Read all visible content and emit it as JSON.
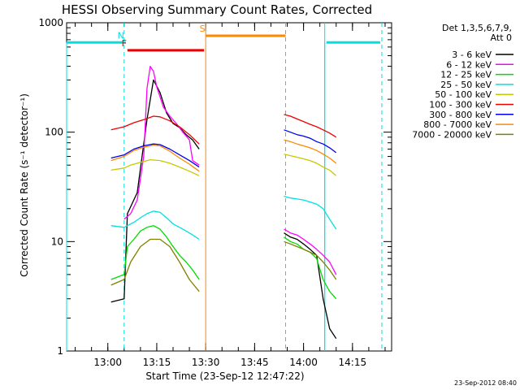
{
  "chart_data": {
    "type": "line",
    "title": "HESSI Observing Summary Count Rates, Corrected",
    "xlabel": "Start Time (23-Sep-12 12:47:22)",
    "ylabel": "Corrected Count Rate (s⁻¹ detector⁻¹)",
    "y_scale": "log",
    "ylim": [
      1,
      1000
    ],
    "xlim": [
      "12:47:22",
      "14:27:00"
    ],
    "x_ticks": [
      "13:00",
      "13:15",
      "13:30",
      "13:45",
      "14:00",
      "14:15"
    ],
    "y_ticks": [
      "1",
      "10",
      "100",
      "1000"
    ],
    "timestamp": "23-Sep-2012 08:40",
    "legend": {
      "placement": "right",
      "header_line1": "Det 1,3,5,6,7,9,",
      "header_line2": "Att 0",
      "entries": [
        {
          "label": "3 - 6 keV",
          "color": "#000000"
        },
        {
          "label": "6 - 12 keV",
          "color": "#ff00ff"
        },
        {
          "label": "12 - 25 keV",
          "color": "#00dd00"
        },
        {
          "label": "25 - 50 keV",
          "color": "#00e0e0"
        },
        {
          "label": "50 - 100 keV",
          "color": "#c8c800"
        },
        {
          "label": "100 - 300 keV",
          "color": "#ee0000"
        },
        {
          "label": "300 - 800 keV",
          "color": "#0000ee"
        },
        {
          "label": "800 - 7000 keV",
          "color": "#ff8800"
        },
        {
          "label": "7000 - 20000 keV",
          "color": "#808000"
        }
      ]
    },
    "flag_bars": [
      {
        "label": "",
        "color": "#00e0e0",
        "start": "12:47:22",
        "end": "13:05:00",
        "y": 660
      },
      {
        "label": "N",
        "color": "#00e0e0",
        "start": "13:05:00",
        "end": "13:05:30",
        "y": 660
      },
      {
        "label": "F",
        "color": "#ee0000",
        "start": "13:06:00",
        "end": "13:29:30",
        "y": 560
      },
      {
        "label": "S",
        "color": "#ff8800",
        "start": "13:30:00",
        "end": "13:54:30",
        "y": 760
      },
      {
        "label": "",
        "color": "#00e0e0",
        "start": "14:07:00",
        "end": "14:23:30",
        "y": 660
      }
    ],
    "markers": [
      {
        "time": "13:05:00",
        "color": "#00e0e0",
        "style": "dashed"
      },
      {
        "time": "13:30:00",
        "color": "#ff8800",
        "style": "solid"
      },
      {
        "time": "13:54:30",
        "color": "#ff8800",
        "style": "dashed"
      },
      {
        "time": "14:06:30",
        "color": "#00e0e0",
        "style": "solid"
      },
      {
        "time": "14:24:00",
        "color": "#00e0e0",
        "style": "dashed"
      }
    ],
    "segments": [
      {
        "start": "12:47:22",
        "end": "13:05:00"
      },
      {
        "start": "14:06:30",
        "end": "14:24:00"
      }
    ],
    "series": [
      {
        "name": "3 - 6 keV",
        "color": "#000000",
        "segments": [
          {
            "x": [
              "13:01",
              "13:05",
              "13:06",
              "13:09",
              "13:12",
              "13:14",
              "13:16",
              "13:18",
              "13:20",
              "13:22",
              "13:24",
              "13:26",
              "13:28"
            ],
            "y": [
              2.8,
              3.0,
              18,
              28,
              130,
              300,
              230,
              150,
              120,
              110,
              95,
              85,
              70
            ]
          },
          {
            "x": [
              "13:54",
              "13:56",
              "13:58",
              "14:00",
              "14:02",
              "14:04",
              "14:06",
              "14:08",
              "14:10"
            ],
            "y": [
              12,
              11,
              10.5,
              9.5,
              8.5,
              7.5,
              3.0,
              1.6,
              1.3
            ]
          }
        ]
      },
      {
        "name": "6 - 12 keV",
        "color": "#ff00ff",
        "segments": [
          {
            "x": [
              "13:05",
              "13:07",
              "13:09",
              "13:11",
              "13:12",
              "13:13",
              "13:14",
              "13:15",
              "13:17",
              "13:19",
              "13:21",
              "13:23",
              "13:25",
              "13:26",
              "13:28"
            ],
            "y": [
              16,
              18,
              24,
              60,
              250,
              400,
              360,
              260,
              170,
              140,
              120,
              100,
              85,
              55,
              50
            ]
          },
          {
            "x": [
              "13:54",
              "13:56",
              "13:58",
              "14:00",
              "14:02",
              "14:04",
              "14:06",
              "14:08",
              "14:10"
            ],
            "y": [
              13,
              12,
              11.5,
              10.5,
              9.5,
              8.5,
              7.5,
              6.5,
              5
            ]
          }
        ]
      },
      {
        "name": "12 - 25 keV",
        "color": "#00dd00",
        "segments": [
          {
            "x": [
              "13:01",
              "13:05",
              "13:06",
              "13:08",
              "13:10",
              "13:12",
              "13:14",
              "13:16",
              "13:18",
              "13:20",
              "13:22",
              "13:24",
              "13:26",
              "13:28"
            ],
            "y": [
              4.5,
              5,
              9,
              10.5,
              12.5,
              13.5,
              14,
              13,
              11,
              9,
              7.5,
              6.5,
              5.5,
              4.5
            ]
          },
          {
            "x": [
              "13:54",
              "13:56",
              "13:58",
              "14:00",
              "14:02",
              "14:04",
              "14:06",
              "14:08",
              "14:10"
            ],
            "y": [
              11,
              10,
              9.5,
              8.5,
              8,
              7,
              4.5,
              3.5,
              3
            ]
          }
        ]
      },
      {
        "name": "25 - 50 keV",
        "color": "#00e0e0",
        "segments": [
          {
            "x": [
              "13:01",
              "13:05",
              "13:06",
              "13:08",
              "13:10",
              "13:12",
              "13:14",
              "13:16",
              "13:18",
              "13:20",
              "13:22",
              "13:24",
              "13:26",
              "13:28"
            ],
            "y": [
              14,
              13.5,
              14,
              15,
              16.5,
              18,
              19,
              18.5,
              16.5,
              14.5,
              13.5,
              12.5,
              11.5,
              10.5
            ]
          },
          {
            "x": [
              "13:54",
              "13:56",
              "13:58",
              "14:00",
              "14:02",
              "14:04",
              "14:06",
              "14:08",
              "14:10"
            ],
            "y": [
              26,
              25,
              24.5,
              24,
              23,
              22,
              20,
              16,
              13
            ]
          }
        ]
      },
      {
        "name": "50 - 100 keV",
        "color": "#c8c800",
        "segments": [
          {
            "x": [
              "13:01",
              "13:05",
              "13:07",
              "13:10",
              "13:13",
              "13:16",
              "13:19",
              "13:22",
              "13:25",
              "13:28"
            ],
            "y": [
              45,
              47,
              50,
              53,
              56,
              55,
              52,
              48,
              44,
              40
            ]
          },
          {
            "x": [
              "13:54",
              "13:56",
              "13:58",
              "14:00",
              "14:02",
              "14:04",
              "14:06",
              "14:08",
              "14:10"
            ],
            "y": [
              63,
              61,
              59,
              57,
              55,
              52,
              48,
              45,
              40
            ]
          }
        ]
      },
      {
        "name": "100 - 300 keV",
        "color": "#ee0000",
        "segments": [
          {
            "x": [
              "13:01",
              "13:05",
              "13:08",
              "13:11",
              "13:14",
              "13:16",
              "13:19",
              "13:22",
              "13:25",
              "13:28"
            ],
            "y": [
              105,
              112,
              122,
              130,
              140,
              138,
              127,
              112,
              95,
              78
            ]
          },
          {
            "x": [
              "13:54",
              "13:56",
              "13:58",
              "14:00",
              "14:02",
              "14:04",
              "14:06",
              "14:08",
              "14:10"
            ],
            "y": [
              145,
              140,
              132,
              125,
              118,
              112,
              105,
              98,
              90
            ]
          }
        ]
      },
      {
        "name": "300 - 800 keV",
        "color": "#0000ee",
        "segments": [
          {
            "x": [
              "13:01",
              "13:05",
              "13:08",
              "13:11",
              "13:14",
              "13:16",
              "13:19",
              "13:22",
              "13:25",
              "13:28"
            ],
            "y": [
              58,
              62,
              70,
              75,
              78,
              77,
              70,
              62,
              55,
              48
            ]
          },
          {
            "x": [
              "13:54",
              "13:56",
              "13:58",
              "14:00",
              "14:02",
              "14:04",
              "14:06",
              "14:08",
              "14:10"
            ],
            "y": [
              105,
              100,
              95,
              92,
              88,
              82,
              78,
              72,
              65
            ]
          }
        ]
      },
      {
        "name": "800 - 7000 keV",
        "color": "#ff8800",
        "segments": [
          {
            "x": [
              "13:01",
              "13:05",
              "13:08",
              "13:11",
              "13:14",
              "13:16",
              "13:19",
              "13:22",
              "13:25",
              "13:28"
            ],
            "y": [
              55,
              60,
              68,
              73,
              76,
              75,
              67,
              58,
              51,
              44
            ]
          },
          {
            "x": [
              "13:54",
              "13:56",
              "13:58",
              "14:00",
              "14:02",
              "14:04",
              "14:06",
              "14:08",
              "14:10"
            ],
            "y": [
              85,
              82,
              78,
              75,
              72,
              68,
              63,
              58,
              52
            ]
          }
        ]
      },
      {
        "name": "7000 - 20000 keV",
        "color": "#808000",
        "segments": [
          {
            "x": [
              "13:01",
              "13:05",
              "13:07",
              "13:10",
              "13:13",
              "13:16",
              "13:19",
              "13:22",
              "13:25",
              "13:28"
            ],
            "y": [
              4,
              4.5,
              6.5,
              9,
              10.5,
              10.5,
              9,
              6.5,
              4.5,
              3.5
            ]
          },
          {
            "x": [
              "13:54",
              "13:56",
              "13:58",
              "14:00",
              "14:02",
              "14:04",
              "14:06",
              "14:08",
              "14:10"
            ],
            "y": [
              10,
              9.5,
              9,
              8.5,
              8,
              7.5,
              6.5,
              5.5,
              4.5
            ]
          }
        ]
      }
    ]
  }
}
